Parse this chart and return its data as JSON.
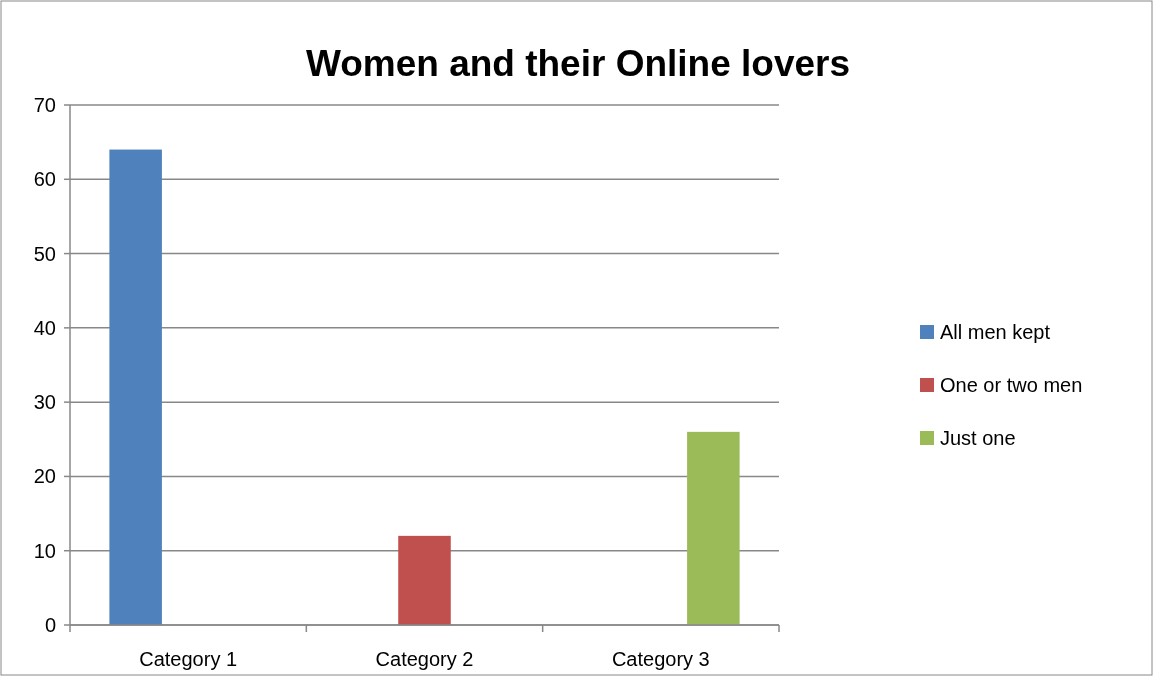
{
  "chart_data": {
    "type": "bar",
    "title": "Women and their Online lovers",
    "categories": [
      "Category 1",
      "Category 2",
      "Category 3"
    ],
    "series": [
      {
        "name": "All men kept",
        "color": "#4f81bd",
        "values": [
          64,
          null,
          null
        ]
      },
      {
        "name": "One or two men",
        "color": "#c0504d",
        "values": [
          null,
          12,
          null
        ]
      },
      {
        "name": "Just one",
        "color": "#9bbb59",
        "values": [
          null,
          null,
          26
        ]
      }
    ],
    "ylim": [
      0,
      70
    ],
    "yticks": [
      0,
      10,
      20,
      30,
      40,
      50,
      60,
      70
    ],
    "grid": "y",
    "legend": "right"
  }
}
